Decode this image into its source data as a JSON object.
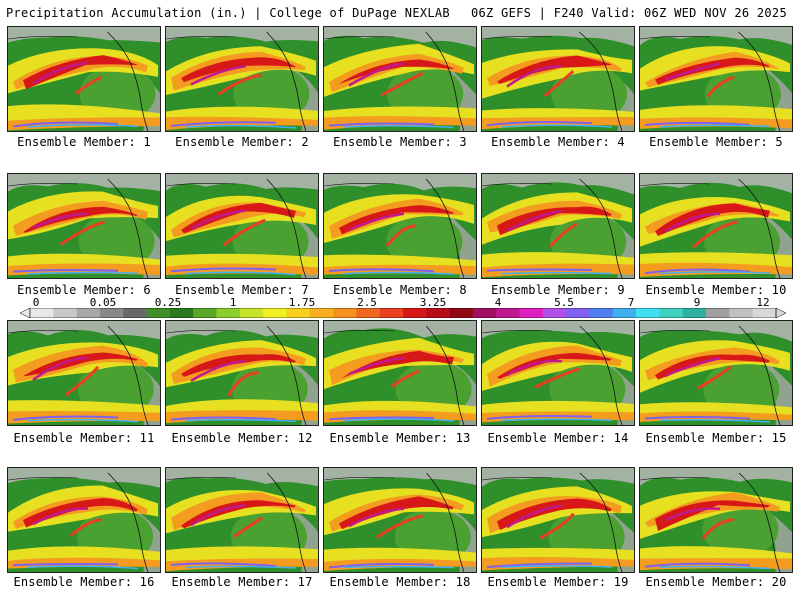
{
  "header": {
    "left": "Precipitation Accumulation (in.) | College of DuPage NEXLAB",
    "right": "06Z GEFS | F240 Valid: 06Z WED NOV 26 2025"
  },
  "colorbar": {
    "labels": [
      "0",
      "0.05",
      "0.25",
      "1",
      "1.75",
      "2.5",
      "3.25",
      "4",
      "5.5",
      "7",
      "9",
      "12"
    ],
    "colors": [
      "#e8e8e8",
      "#c8c8c8",
      "#a8a8a8",
      "#888888",
      "#686868",
      "#3f8f2a",
      "#2a7a1f",
      "#5aa82a",
      "#8ccf2a",
      "#c8e42a",
      "#f0f020",
      "#f8d020",
      "#f8b020",
      "#f89020",
      "#f06820",
      "#e84020",
      "#d81818",
      "#b80c18",
      "#900814",
      "#a01060",
      "#c01890",
      "#e020c0",
      "#b050e8",
      "#8060f0",
      "#5080f0",
      "#40b0f0",
      "#40e0f0",
      "#40d0c0",
      "#30b0a0",
      "#a0a0a0",
      "#c0c0c0",
      "#d8d8d8"
    ]
  },
  "members": [
    {
      "label": "Ensemble Member: 1"
    },
    {
      "label": "Ensemble Member: 2"
    },
    {
      "label": "Ensemble Member: 3"
    },
    {
      "label": "Ensemble Member: 4"
    },
    {
      "label": "Ensemble Member: 5"
    },
    {
      "label": "Ensemble Member: 6"
    },
    {
      "label": "Ensemble Member: 7"
    },
    {
      "label": "Ensemble Member: 8"
    },
    {
      "label": "Ensemble Member: 9"
    },
    {
      "label": "Ensemble Member: 10"
    },
    {
      "label": "Ensemble Member: 11"
    },
    {
      "label": "Ensemble Member: 12"
    },
    {
      "label": "Ensemble Member: 13"
    },
    {
      "label": "Ensemble Member: 14"
    },
    {
      "label": "Ensemble Member: 15"
    },
    {
      "label": "Ensemble Member: 16"
    },
    {
      "label": "Ensemble Member: 17"
    },
    {
      "label": "Ensemble Member: 18"
    },
    {
      "label": "Ensemble Member: 19"
    },
    {
      "label": "Ensemble Member: 20"
    }
  ]
}
